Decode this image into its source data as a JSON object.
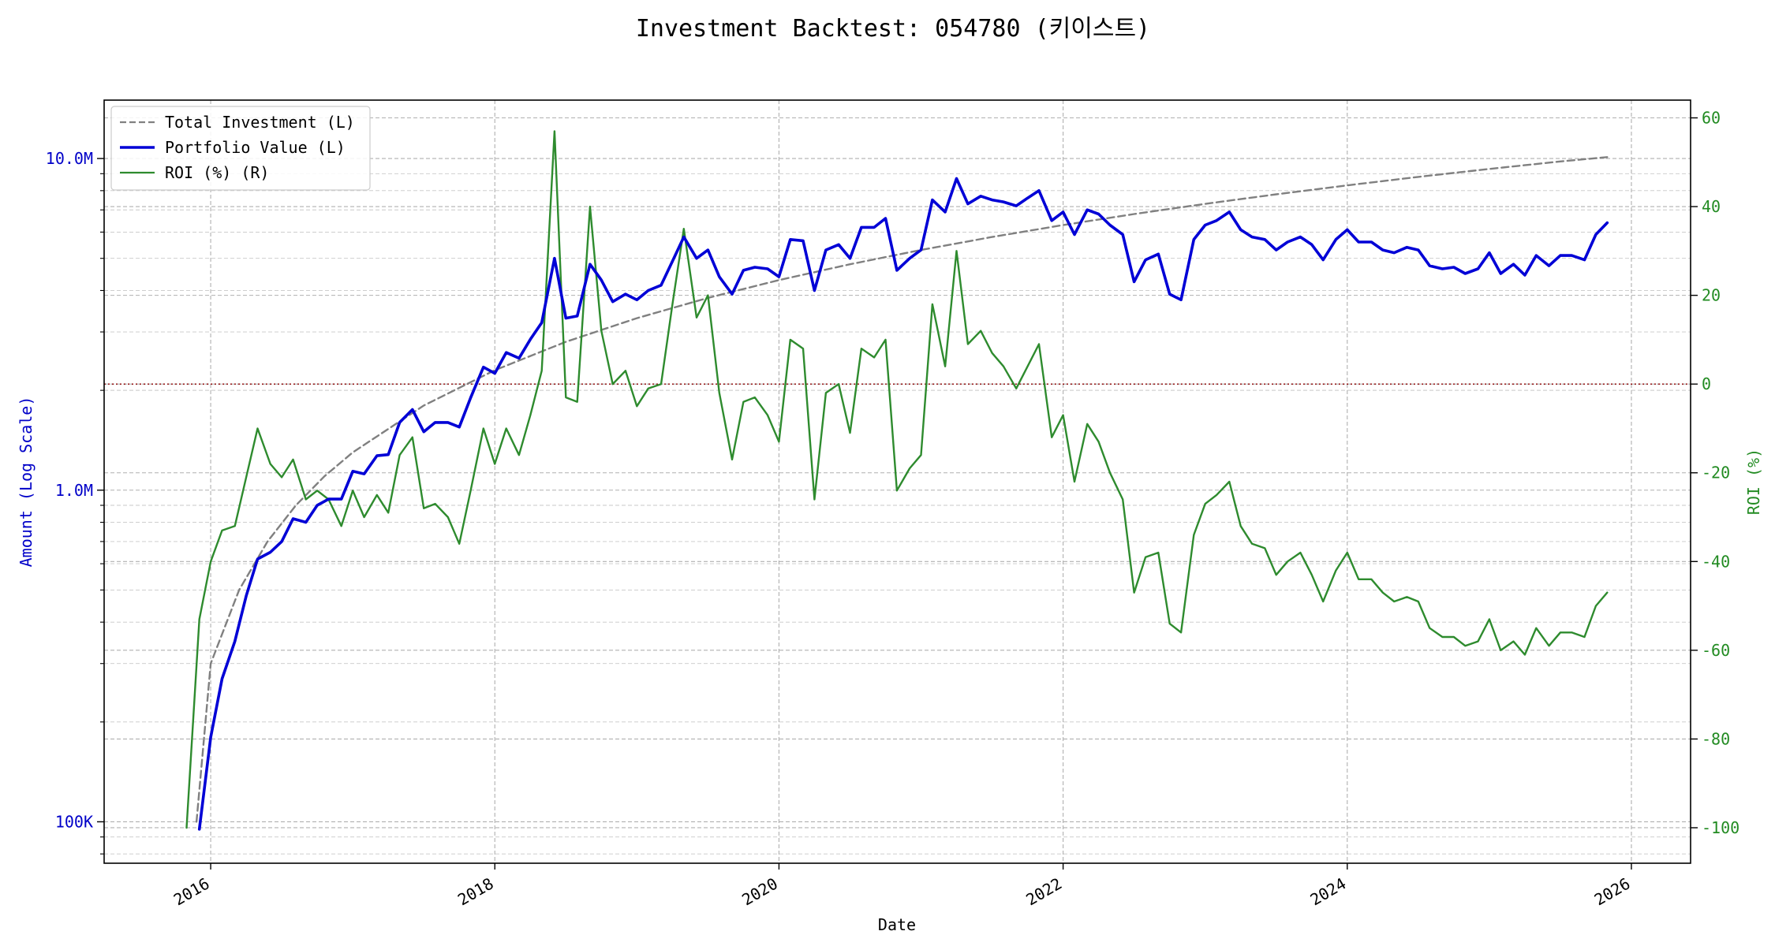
{
  "chart_data": {
    "type": "line",
    "title": "Investment Backtest: 054780 (키이스트)",
    "xlabel": "Date",
    "ylabel_left": "Amount (Log Scale)",
    "ylabel_right": "ROI (%)",
    "x_ticks": [
      "2016",
      "2018",
      "2020",
      "2022",
      "2024",
      "2026"
    ],
    "y_left_ticks": [
      "100K",
      "1.0M",
      "10.0M"
    ],
    "y_right_ticks": [
      "-100",
      "-80",
      "-60",
      "-40",
      "-20",
      "0",
      "20",
      "40",
      "60"
    ],
    "y_left_scale": "log",
    "y_left_range": [
      75000,
      15000000
    ],
    "y_right_range": [
      -108,
      64
    ],
    "x_range": [
      "2015-04",
      "2026-06"
    ],
    "grid": true,
    "legend_position": "upper-left",
    "reference_line": {
      "axis": "right",
      "value": 0,
      "color": "#8b0000",
      "style": "dotted"
    },
    "colors": {
      "total_investment": "#808080",
      "portfolio_value": "#0000d6",
      "roi": "#2e8b2e",
      "left_axis": "#0000c8",
      "right_axis": "#228b22"
    },
    "legend": [
      {
        "key": "total_investment",
        "label": "Total Investment (L)",
        "style": "dashed"
      },
      {
        "key": "portfolio_value",
        "label": "Portfolio Value (L)",
        "style": "solid-thick"
      },
      {
        "key": "roi",
        "label": "ROI (%) (R)",
        "style": "solid"
      }
    ],
    "series": [
      {
        "key": "total_investment",
        "axis": "left",
        "x": [
          2015.9,
          2016.0,
          2016.2,
          2016.4,
          2016.6,
          2016.8,
          2017.0,
          2017.5,
          2018.0,
          2018.5,
          2019.0,
          2019.5,
          2020.0,
          2020.5,
          2021.0,
          2021.5,
          2022.0,
          2022.5,
          2023.0,
          2023.5,
          2024.0,
          2024.5,
          2025.0,
          2025.5,
          2025.83
        ],
        "values": [
          100000,
          300000,
          500000,
          700000,
          900000,
          1100000,
          1300000,
          1800000,
          2300000,
          2800000,
          3300000,
          3800000,
          4300000,
          4800000,
          5300000,
          5800000,
          6300000,
          6800000,
          7300000,
          7800000,
          8300000,
          8800000,
          9300000,
          9800000,
          10100000
        ]
      },
      {
        "key": "portfolio_value",
        "axis": "left",
        "x": [
          2015.92,
          2016.0,
          2016.08,
          2016.17,
          2016.25,
          2016.33,
          2016.42,
          2016.5,
          2016.58,
          2016.67,
          2016.75,
          2016.83,
          2016.92,
          2017.0,
          2017.08,
          2017.17,
          2017.25,
          2017.33,
          2017.42,
          2017.5,
          2017.58,
          2017.67,
          2017.75,
          2017.83,
          2017.92,
          2018.0,
          2018.08,
          2018.17,
          2018.25,
          2018.33,
          2018.42,
          2018.5,
          2018.58,
          2018.67,
          2018.75,
          2018.83,
          2018.92,
          2019.0,
          2019.08,
          2019.17,
          2019.25,
          2019.33,
          2019.42,
          2019.5,
          2019.58,
          2019.67,
          2019.75,
          2019.83,
          2019.92,
          2020.0,
          2020.08,
          2020.17,
          2020.25,
          2020.33,
          2020.42,
          2020.5,
          2020.58,
          2020.67,
          2020.75,
          2020.83,
          2020.92,
          2021.0,
          2021.08,
          2021.17,
          2021.25,
          2021.33,
          2021.42,
          2021.5,
          2021.58,
          2021.67,
          2021.75,
          2021.83,
          2021.92,
          2022.0,
          2022.08,
          2022.17,
          2022.25,
          2022.33,
          2022.42,
          2022.5,
          2022.58,
          2022.67,
          2022.75,
          2022.83,
          2022.92,
          2023.0,
          2023.08,
          2023.17,
          2023.25,
          2023.33,
          2023.42,
          2023.5,
          2023.58,
          2023.67,
          2023.75,
          2023.83,
          2023.92,
          2024.0,
          2024.08,
          2024.17,
          2024.25,
          2024.33,
          2024.42,
          2024.5,
          2024.58,
          2024.67,
          2024.75,
          2024.83,
          2024.92,
          2025.0,
          2025.08,
          2025.17,
          2025.25,
          2025.33,
          2025.42,
          2025.5,
          2025.58,
          2025.67,
          2025.75,
          2025.83
        ],
        "values": [
          95000,
          180000,
          270000,
          350000,
          480000,
          620000,
          650000,
          700000,
          820000,
          800000,
          900000,
          940000,
          940000,
          1140000,
          1120000,
          1270000,
          1280000,
          1600000,
          1750000,
          1500000,
          1600000,
          1600000,
          1550000,
          1900000,
          2350000,
          2250000,
          2600000,
          2500000,
          2850000,
          3200000,
          5000000,
          3300000,
          3350000,
          4800000,
          4300000,
          3700000,
          3900000,
          3750000,
          4000000,
          4150000,
          4900000,
          5800000,
          5000000,
          5300000,
          4400000,
          3900000,
          4600000,
          4700000,
          4650000,
          4400000,
          5700000,
          5650000,
          4000000,
          5300000,
          5500000,
          5000000,
          6200000,
          6200000,
          6600000,
          4600000,
          5000000,
          5300000,
          7500000,
          6900000,
          8700000,
          7300000,
          7700000,
          7500000,
          7400000,
          7200000,
          7600000,
          8000000,
          6500000,
          6900000,
          5900000,
          7000000,
          6800000,
          6300000,
          5900000,
          4250000,
          4950000,
          5150000,
          3900000,
          3750000,
          5700000,
          6300000,
          6500000,
          6900000,
          6100000,
          5800000,
          5700000,
          5300000,
          5600000,
          5800000,
          5500000,
          4950000,
          5700000,
          6100000,
          5600000,
          5600000,
          5300000,
          5200000,
          5400000,
          5300000,
          4750000,
          4650000,
          4700000,
          4500000,
          4650000,
          5200000,
          4500000,
          4800000,
          4450000,
          5100000,
          4750000,
          5100000,
          5100000,
          4950000,
          5900000,
          6400000
        ]
      },
      {
        "key": "roi",
        "axis": "right",
        "x": [
          2015.83,
          2015.92,
          2016.0,
          2016.08,
          2016.17,
          2016.25,
          2016.33,
          2016.42,
          2016.5,
          2016.58,
          2016.67,
          2016.75,
          2016.83,
          2016.92,
          2017.0,
          2017.08,
          2017.17,
          2017.25,
          2017.33,
          2017.42,
          2017.5,
          2017.58,
          2017.67,
          2017.75,
          2017.83,
          2017.92,
          2018.0,
          2018.08,
          2018.17,
          2018.25,
          2018.33,
          2018.42,
          2018.5,
          2018.58,
          2018.67,
          2018.75,
          2018.83,
          2018.92,
          2019.0,
          2019.08,
          2019.17,
          2019.25,
          2019.33,
          2019.42,
          2019.5,
          2019.58,
          2019.67,
          2019.75,
          2019.83,
          2019.92,
          2020.0,
          2020.08,
          2020.17,
          2020.25,
          2020.33,
          2020.42,
          2020.5,
          2020.58,
          2020.67,
          2020.75,
          2020.83,
          2020.92,
          2021.0,
          2021.08,
          2021.17,
          2021.25,
          2021.33,
          2021.42,
          2021.5,
          2021.58,
          2021.67,
          2021.75,
          2021.83,
          2021.92,
          2022.0,
          2022.08,
          2022.17,
          2022.25,
          2022.33,
          2022.42,
          2022.5,
          2022.58,
          2022.67,
          2022.75,
          2022.83,
          2022.92,
          2023.0,
          2023.08,
          2023.17,
          2023.25,
          2023.33,
          2023.42,
          2023.5,
          2023.58,
          2023.67,
          2023.75,
          2023.83,
          2023.92,
          2024.0,
          2024.08,
          2024.17,
          2024.25,
          2024.33,
          2024.42,
          2024.5,
          2024.58,
          2024.67,
          2024.75,
          2024.83,
          2024.92,
          2025.0,
          2025.08,
          2025.17,
          2025.25,
          2025.33,
          2025.42,
          2025.5,
          2025.58,
          2025.67,
          2025.75,
          2025.83
        ],
        "values": [
          -100,
          -53,
          -40,
          -33,
          -32,
          -21,
          -10,
          -18,
          -21,
          -17,
          -26,
          -24,
          -26,
          -32,
          -24,
          -30,
          -25,
          -29,
          -16,
          -12,
          -28,
          -27,
          -30,
          -36,
          -24,
          -10,
          -18,
          -10,
          -16,
          -7,
          3,
          57,
          -3,
          -4,
          40,
          12,
          0,
          3,
          -5,
          -1,
          0,
          18,
          35,
          15,
          20,
          -2,
          -17,
          -4,
          -3,
          -7,
          -13,
          10,
          8,
          -26,
          -2,
          0,
          -11,
          8,
          6,
          10,
          -24,
          -19,
          -16,
          18,
          4,
          30,
          9,
          12,
          7,
          4,
          -1,
          4,
          9,
          -12,
          -7,
          -22,
          -9,
          -13,
          -20,
          -26,
          -47,
          -39,
          -38,
          -54,
          -56,
          -34,
          -27,
          -25,
          -22,
          -32,
          -36,
          -37,
          -43,
          -40,
          -38,
          -43,
          -49,
          -42,
          -38,
          -44,
          -44,
          -47,
          -49,
          -48,
          -49,
          -55,
          -57,
          -57,
          -59,
          -58,
          -53,
          -60,
          -58,
          -61,
          -55,
          -59,
          -56,
          -56,
          -57,
          -50,
          -47
        ]
      }
    ]
  }
}
